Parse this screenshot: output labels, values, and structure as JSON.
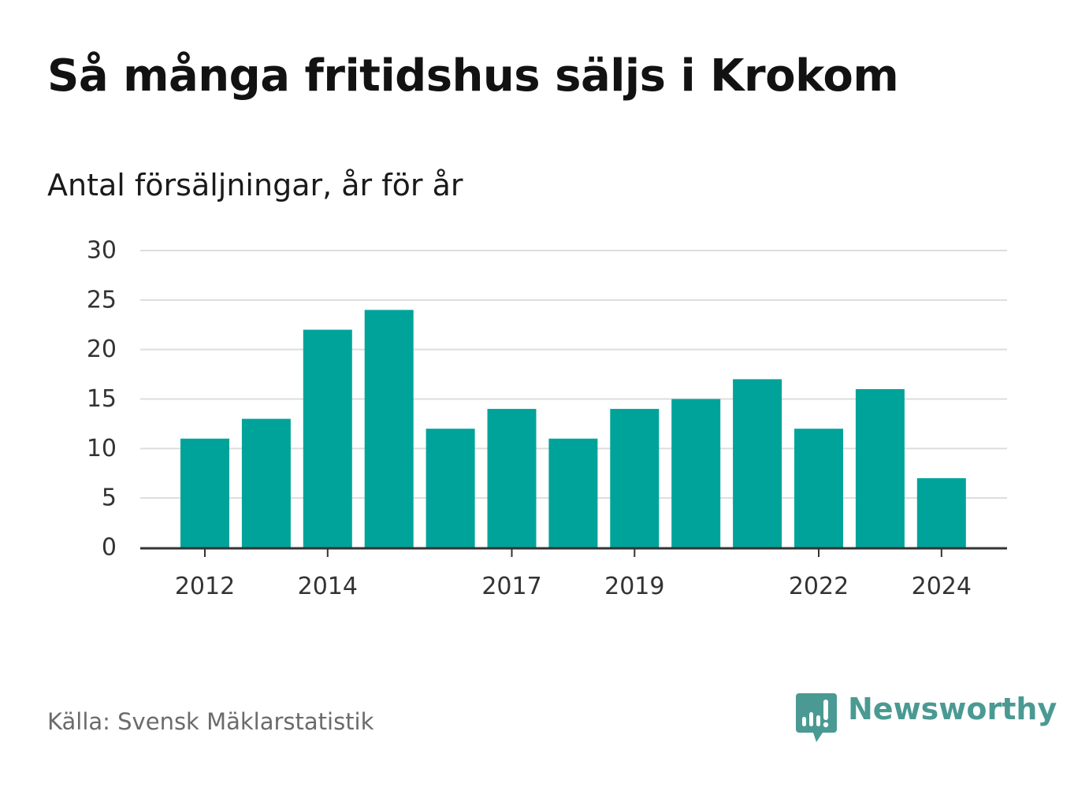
{
  "title": "Så många fritidshus säljs i Krokom",
  "subtitle": "Antal försäljningar, år för år",
  "source": "Källa: Svensk Mäklarstatistik",
  "brand": {
    "name": "Newsworthy",
    "logo_icon": "bar-chart-speech-bubble-icon",
    "color": "#4a9a93"
  },
  "colors": {
    "bar": "#00a39a",
    "grid": "#dddddd",
    "axis": "#333333",
    "tick_text": "#333333"
  },
  "chart_data": {
    "type": "bar",
    "categories": [
      "2012",
      "2013",
      "2014",
      "2015",
      "2016",
      "2017",
      "2018",
      "2019",
      "2020",
      "2021",
      "2022",
      "2023",
      "2024"
    ],
    "values": [
      11,
      13,
      22,
      24,
      12,
      14,
      11,
      14,
      15,
      17,
      12,
      16,
      7
    ],
    "x_tick_labels": [
      "2012",
      "2014",
      "2017",
      "2019",
      "2022",
      "2024"
    ],
    "y_ticks": [
      0,
      5,
      10,
      15,
      20,
      25,
      30
    ],
    "ylim": [
      0,
      30
    ],
    "title": "Så många fritidshus säljs i Krokom",
    "subtitle": "Antal försäljningar, år för år",
    "xlabel": "",
    "ylabel": "",
    "grid": true,
    "legend": false
  }
}
